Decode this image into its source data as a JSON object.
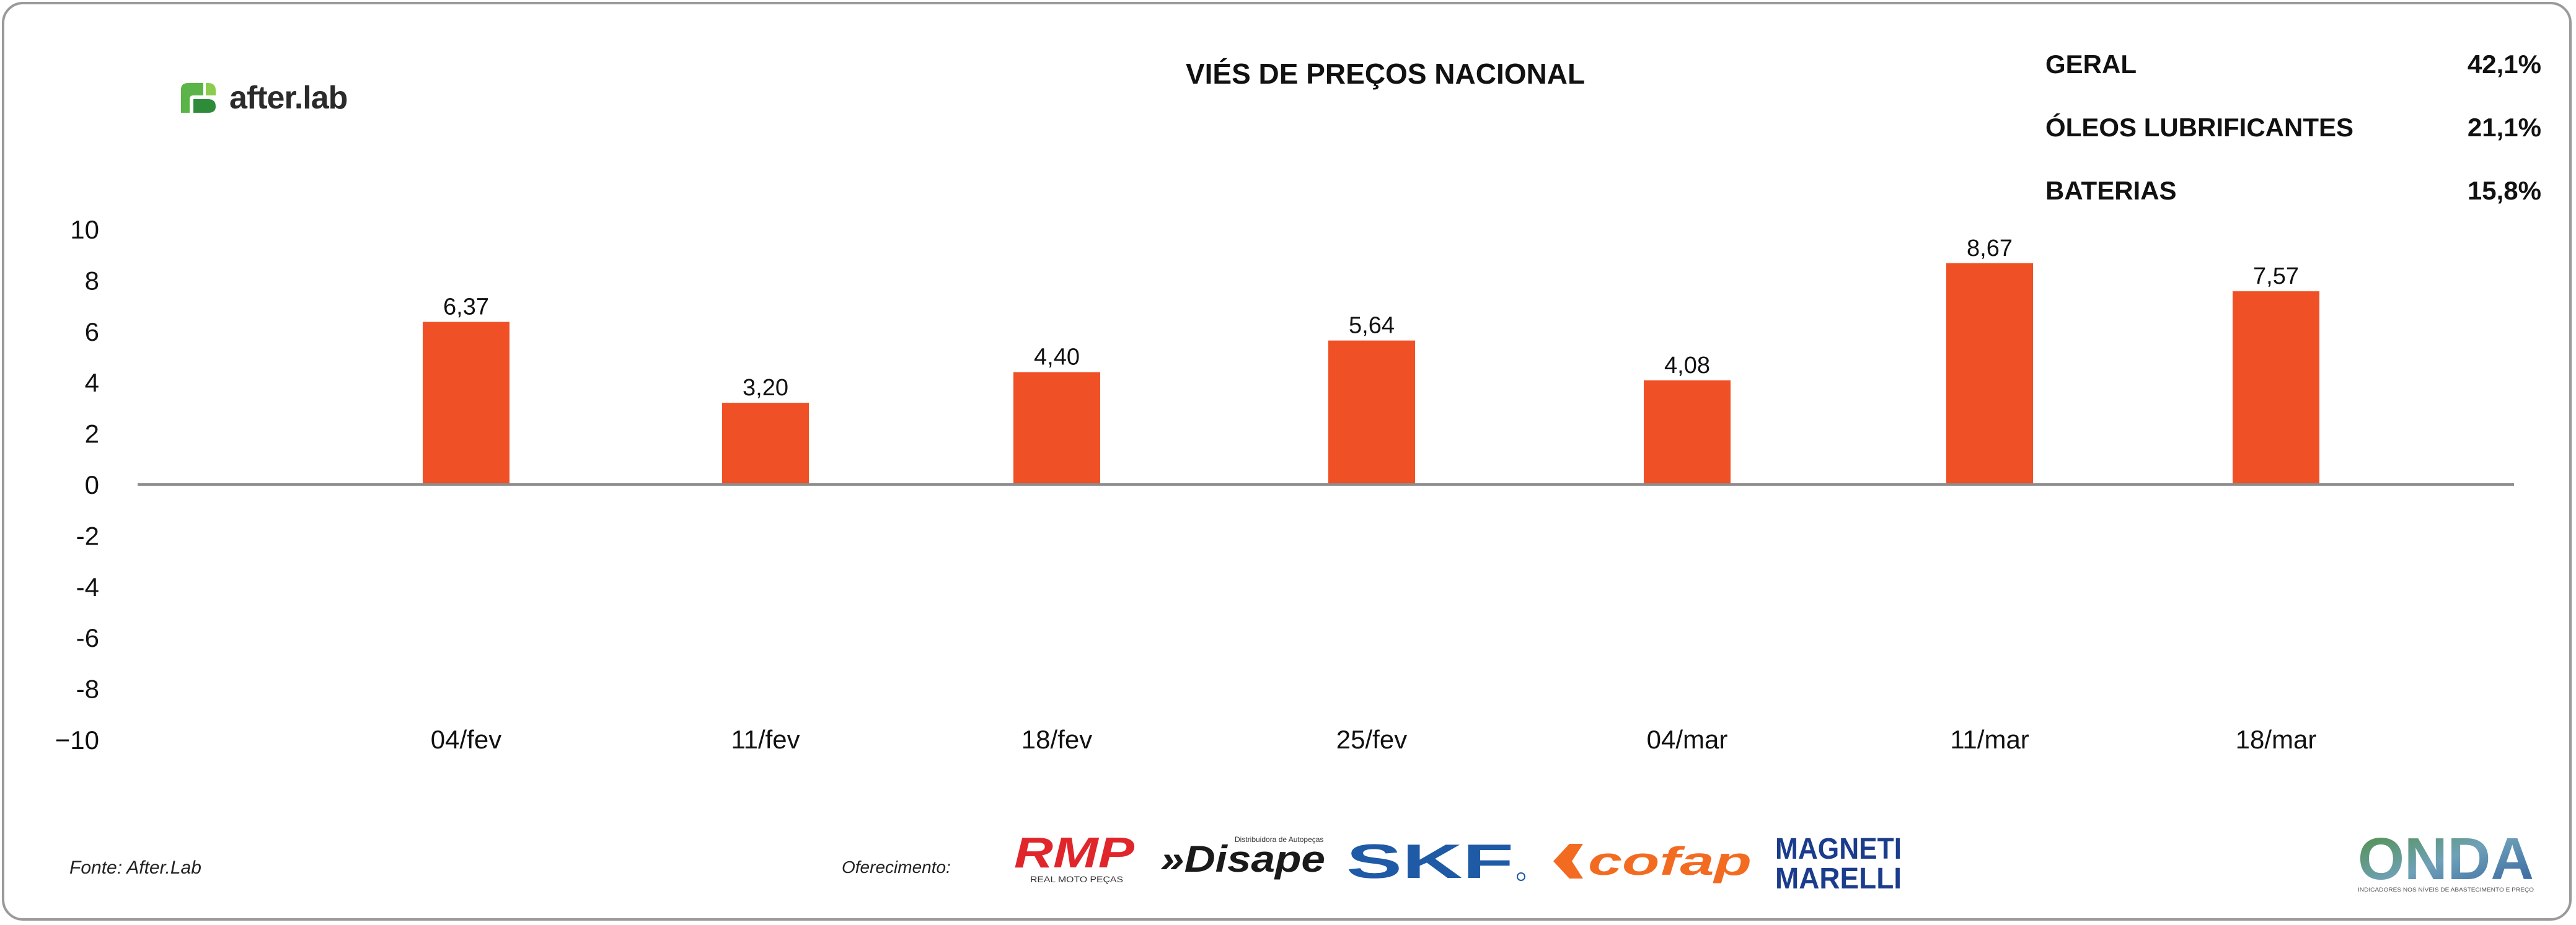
{
  "header": {
    "brand": "after.lab",
    "title": "VIÉS DE PREÇOS NACIONAL"
  },
  "stats": [
    {
      "label": "GERAL",
      "value": "42,1%"
    },
    {
      "label": "ÓLEOS LUBRIFICANTES",
      "value": "21,1%"
    },
    {
      "label": "BATERIAS",
      "value": "15,8%"
    }
  ],
  "chart_data": {
    "type": "bar",
    "categories": [
      "04/fev",
      "11/fev",
      "18/fev",
      "25/fev",
      "04/mar",
      "11/mar",
      "18/mar"
    ],
    "values": [
      6.37,
      3.2,
      4.4,
      5.64,
      4.08,
      8.67,
      7.57
    ],
    "value_labels": [
      "6,37",
      "3,20",
      "4,40",
      "5,64",
      "4,08",
      "8,67",
      "7,57"
    ],
    "y_ticks": [
      10,
      8,
      6,
      4,
      2,
      0,
      -2,
      -4,
      -6,
      -8,
      -10
    ],
    "y_tick_labels": [
      "10",
      "8",
      "6",
      "4",
      "2",
      "0",
      "-2",
      "-4",
      "-6",
      "-8",
      "−10"
    ],
    "ylim": [
      -10,
      10
    ],
    "grid": false,
    "bar_color": "#F05025"
  },
  "footer": {
    "source": "Fonte: After.Lab",
    "offer_label": "Oferecimento:",
    "sponsors": {
      "rmp": "RMP",
      "rmp_sub": "REAL MOTO PEÇAS",
      "disape": "»Disape",
      "disape_sub": "Distribuidora de Autopeças",
      "skf": "SKF",
      "cofap": "cofap",
      "magneti_1": "MAGNETI",
      "magneti_2": "MARELLI",
      "onda": "ONDA",
      "onda_sub": "INDICADORES NOS NÍVEIS DE ABASTECIMENTO E PREÇO"
    }
  },
  "colors": {
    "accent_green": "#5BB447",
    "rmp_red": "#E0262B",
    "skf_blue": "#1F5AA6",
    "cofap_orange": "#F26B21",
    "magneti_blue": "#1B3C8C"
  }
}
